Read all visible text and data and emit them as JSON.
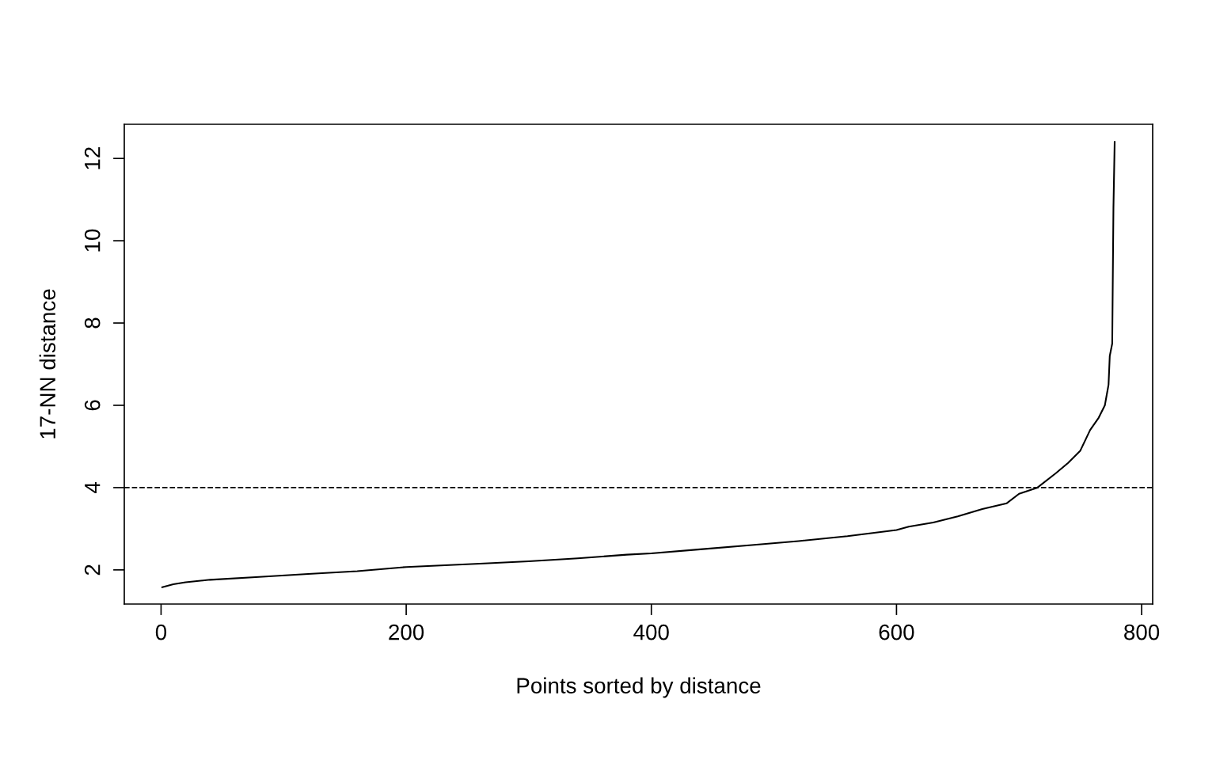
{
  "chart_data": {
    "type": "line",
    "xlabel": "Points sorted by distance",
    "ylabel": "17-NN distance",
    "x": [
      1,
      10,
      20,
      40,
      80,
      120,
      160,
      200,
      260,
      300,
      340,
      380,
      400,
      440,
      480,
      520,
      560,
      600,
      610,
      630,
      650,
      670,
      690,
      700,
      715,
      730,
      740,
      750,
      758,
      765,
      770,
      773,
      774,
      776,
      777,
      778
    ],
    "series": [
      {
        "color": "#000000",
        "values": [
          1.58,
          1.65,
          1.7,
          1.76,
          1.83,
          1.9,
          1.97,
          2.07,
          2.15,
          2.21,
          2.28,
          2.37,
          2.4,
          2.5,
          2.6,
          2.7,
          2.82,
          2.97,
          3.05,
          3.15,
          3.3,
          3.48,
          3.62,
          3.85,
          4.0,
          4.35,
          4.6,
          4.9,
          5.4,
          5.7,
          6.0,
          6.5,
          7.2,
          7.5,
          10.8,
          12.4
        ]
      }
    ],
    "xlim": [
      -30,
      809
    ],
    "ylim": [
      1.17,
      12.83
    ],
    "xticks": [
      0,
      200,
      400,
      600,
      800
    ],
    "yticks": [
      2,
      4,
      6,
      8,
      10,
      12
    ],
    "ref_lines": [
      {
        "axis": "y",
        "value": 4,
        "color": "#000000",
        "line_style": "dashed"
      }
    ],
    "grid": false,
    "legend": false,
    "marker": "none",
    "line_style": "solid"
  }
}
